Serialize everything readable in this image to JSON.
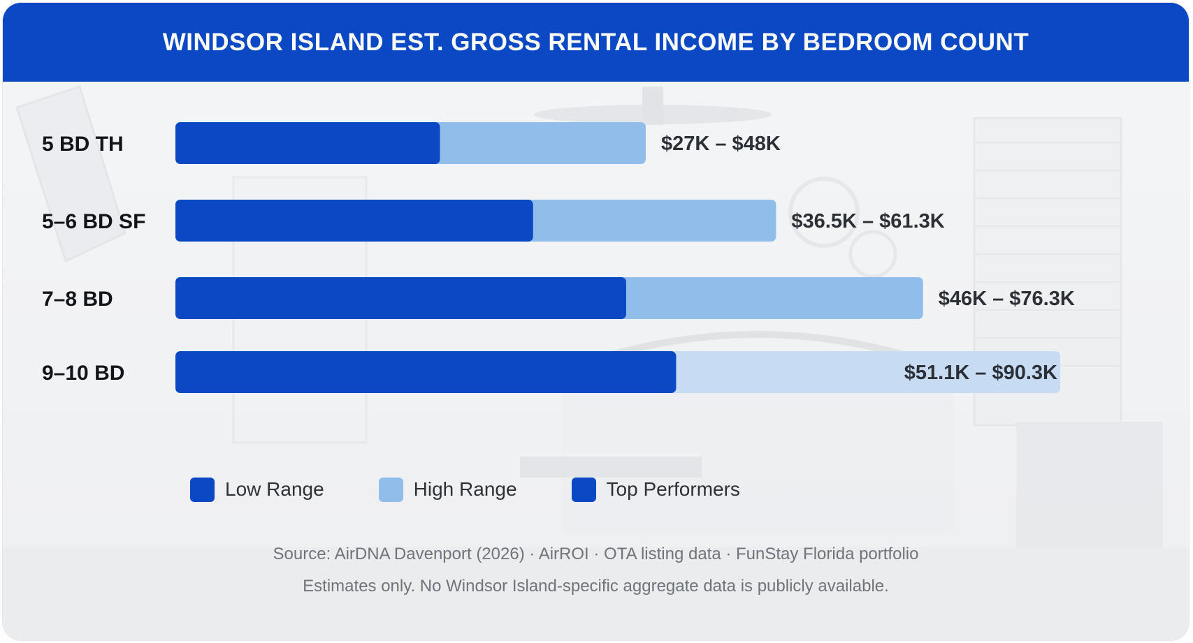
{
  "header": {
    "title": "WINDSOR ISLAND EST. GROSS RENTAL INCOME BY BEDROOM COUNT"
  },
  "colors": {
    "header_bg": "#0a48c4",
    "low_range": "#0a48c4",
    "high_range": "#90bdea",
    "top_performers": "#0a48c4",
    "top_high_range": "#c7dbf3"
  },
  "chart_data": {
    "type": "bar",
    "orientation": "horizontal",
    "stacked": true,
    "title": "WINDSOR ISLAND EST. GROSS RENTAL INCOME BY BEDROOM COUNT",
    "categories": [
      "5 BD TH",
      "5–6 BD SF",
      "7–8 BD",
      "9–10 BD"
    ],
    "low": [
      27,
      36.5,
      46,
      51.1
    ],
    "high": [
      48,
      61.3,
      76.3,
      90.3
    ],
    "labels": [
      "$27K – $48K",
      "$36.5K – $61.3K",
      "$46K – $76.3K",
      "$51.1K – $90.3K"
    ],
    "top_performer_index": 3,
    "xlim": [
      0,
      90.3
    ],
    "grid": false,
    "legend_position": "bottom"
  },
  "legend": {
    "items": [
      {
        "label": "Low Range",
        "color": "#0a48c4"
      },
      {
        "label": "High Range",
        "color": "#90bdea"
      },
      {
        "label": "Top Performers",
        "color": "#0a48c4"
      }
    ]
  },
  "footer": {
    "source": "Source: AirDNA Davenport (2026) · AirROI · OTA listing data · FunStay Florida portfolio",
    "note": "Estimates only. No Windsor Island-specific aggregate data is publicly available."
  }
}
